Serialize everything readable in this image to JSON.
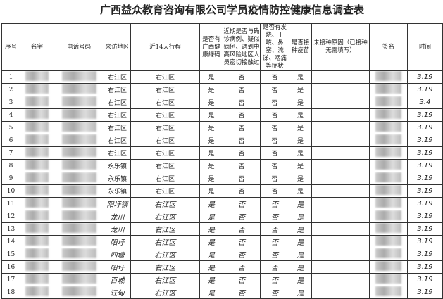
{
  "title": "广西益众教育咨询有限公司学员疫情防控健康信息调查表",
  "headers": [
    "序号",
    "名字",
    "电话号码",
    "来访地区",
    "近14天行程",
    "是否有广西健康绿码",
    "近期是否与确诊病例、疑似病例、遇到中高风险地区人员密切接触过",
    "是否有发烧、干咳、鼻塞、流涕、咽痛等症状",
    "是否接种疫苗",
    "未接种原因（已接种无需填写）",
    "签名",
    "时间"
  ],
  "rows": [
    [
      "1",
      "右江区",
      "右江区",
      "是",
      "否",
      "否",
      "是",
      "3.19"
    ],
    [
      "2",
      "右江区",
      "右江区",
      "是",
      "否",
      "否",
      "是",
      "3.19"
    ],
    [
      "3",
      "右江区",
      "右江区",
      "是",
      "否",
      "否",
      "是",
      "3.4"
    ],
    [
      "4",
      "右江区",
      "右江区",
      "是",
      "否",
      "否",
      "是",
      "3.19"
    ],
    [
      "5",
      "右江区",
      "右江区",
      "是",
      "否",
      "否",
      "是",
      "3.19"
    ],
    [
      "6",
      "右江区",
      "右江区",
      "是",
      "否",
      "否",
      "是",
      "3.19"
    ],
    [
      "7",
      "右江区",
      "右江区",
      "是",
      "否",
      "否",
      "是",
      "3.19"
    ],
    [
      "8",
      "永乐镇",
      "右江区",
      "是",
      "否",
      "否",
      "是",
      "3.19"
    ],
    [
      "9",
      "永乐镇",
      "右江区",
      "是",
      "否",
      "否",
      "是",
      "3.19"
    ],
    [
      "10",
      "永乐镇",
      "右江区",
      "是",
      "否",
      "否",
      "是",
      "3.19"
    ],
    [
      "11",
      "阳圩镇",
      "右江区",
      "是",
      "否",
      "否",
      "是",
      "3.19"
    ],
    [
      "12",
      "龙川",
      "右江区",
      "是",
      "否",
      "否",
      "是",
      "3.19"
    ],
    [
      "13",
      "龙川",
      "右江区",
      "是",
      "否",
      "否",
      "是",
      "3.19"
    ],
    [
      "14",
      "阳圩",
      "右江区",
      "是",
      "否",
      "否",
      "是",
      "3.19"
    ],
    [
      "15",
      "四塘",
      "右江区",
      "是",
      "否",
      "否",
      "是",
      "3.19"
    ],
    [
      "16",
      "阳圩",
      "右江区",
      "是",
      "否",
      "否",
      "是",
      "3.19"
    ],
    [
      "17",
      "百城",
      "右江区",
      "是",
      "否",
      "否",
      "是",
      "3.19"
    ],
    [
      "18",
      "汪甸",
      "右江区",
      "是",
      "否",
      "否",
      "是",
      "3.19"
    ]
  ]
}
